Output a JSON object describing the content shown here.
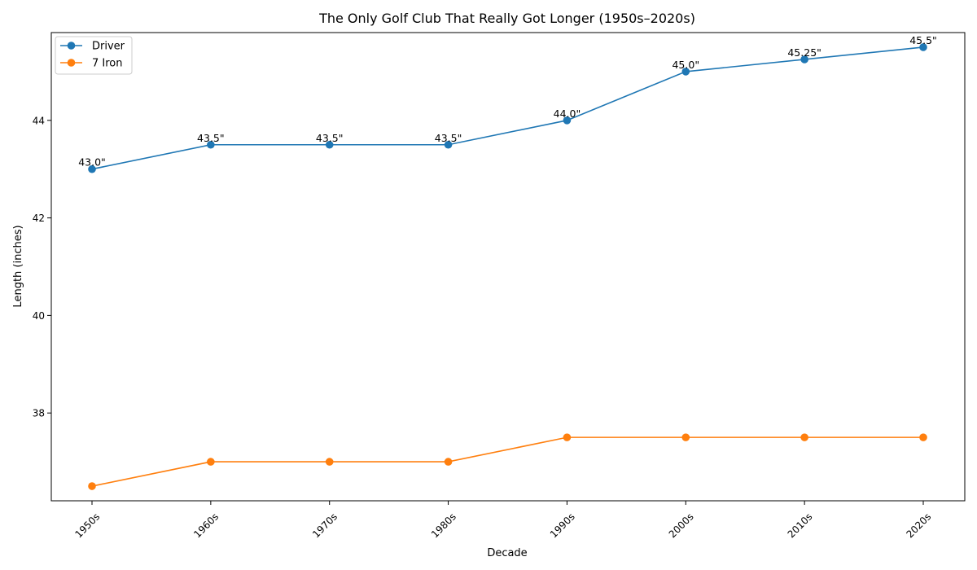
{
  "chart_data": {
    "type": "line",
    "title": "The Only Golf Club That Really Got Longer (1950s–2020s)",
    "xlabel": "Decade",
    "ylabel": "Length (inches)",
    "categories": [
      "1950s",
      "1960s",
      "1970s",
      "1980s",
      "1990s",
      "2000s",
      "2010s",
      "2020s"
    ],
    "ylim": [
      36.2,
      45.8
    ],
    "yticks": [
      38,
      40,
      42,
      44
    ],
    "grid": false,
    "legend_position": "top-left",
    "series": [
      {
        "name": "Driver",
        "color": "#1f77b4",
        "values": [
          43.0,
          43.5,
          43.5,
          43.5,
          44.0,
          45.0,
          45.25,
          45.5
        ],
        "labels": [
          "43.0\"",
          "43.5\"",
          "43.5\"",
          "43.5\"",
          "44.0\"",
          "45.0\"",
          "45.25\"",
          "45.5\""
        ]
      },
      {
        "name": "7 Iron",
        "color": "#ff7f0e",
        "values": [
          36.5,
          37.0,
          37.0,
          37.0,
          37.5,
          37.5,
          37.5,
          37.5
        ]
      }
    ]
  }
}
